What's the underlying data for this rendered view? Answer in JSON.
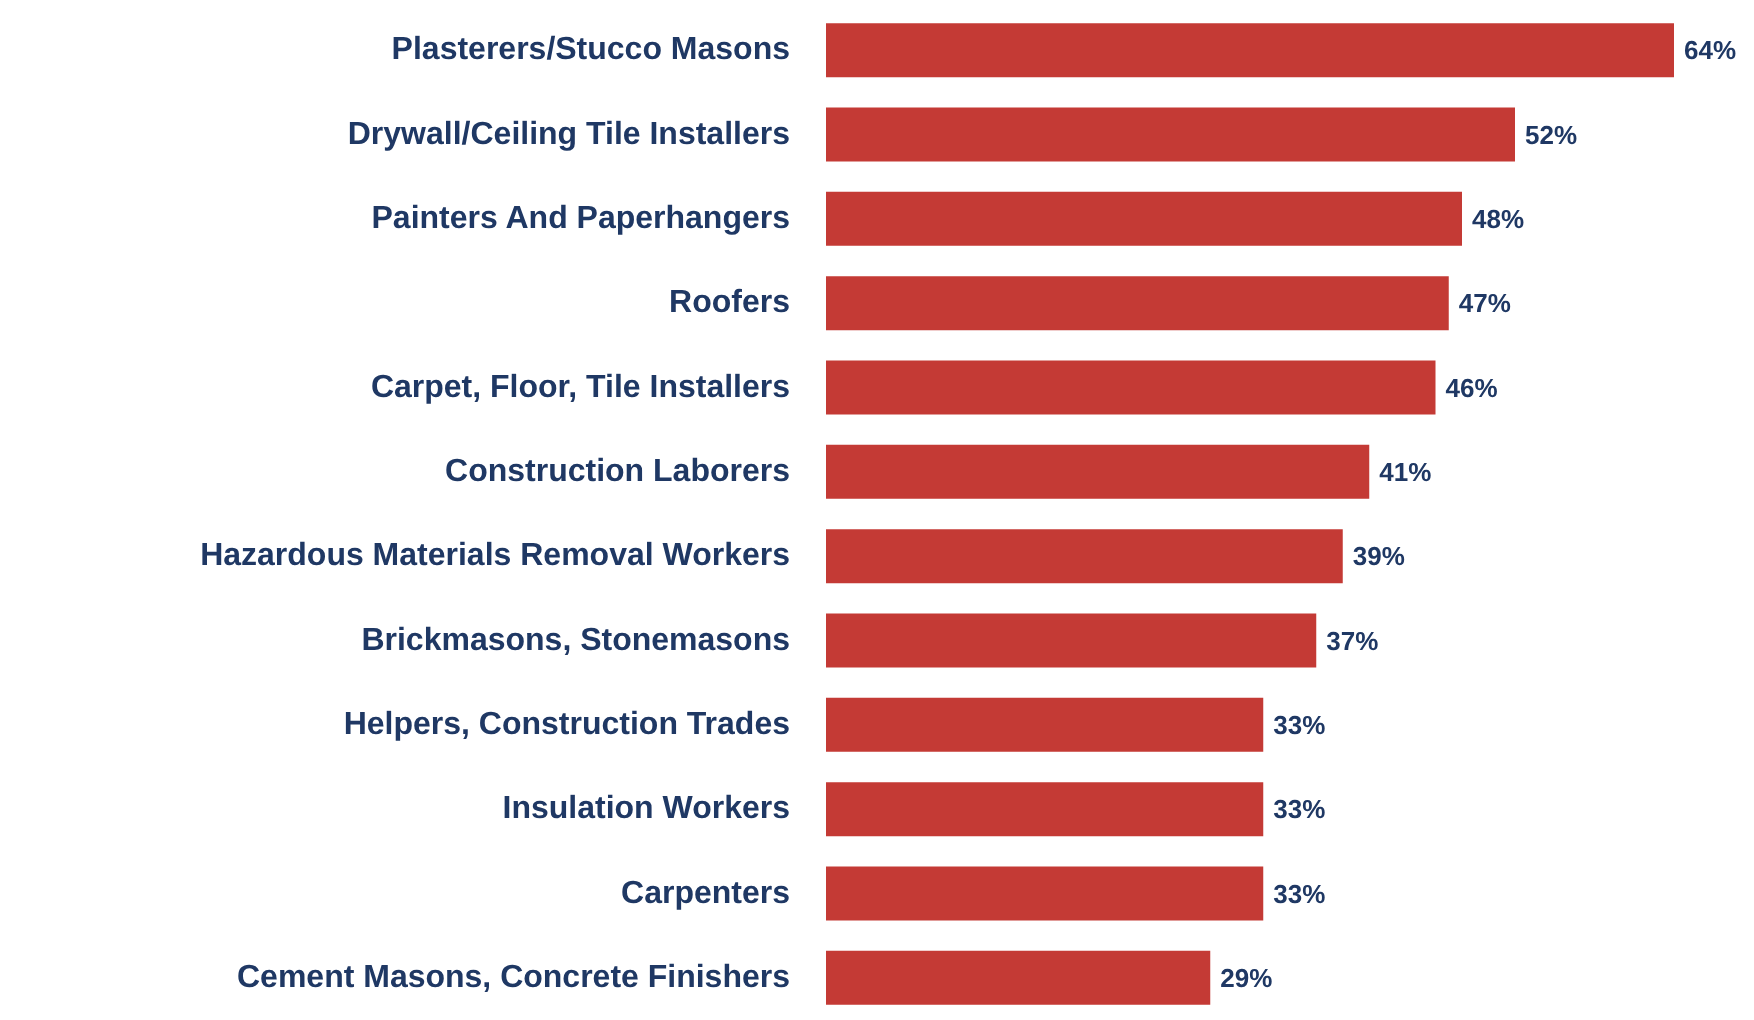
{
  "chart_data": {
    "type": "bar",
    "orientation": "horizontal",
    "tick_labels": "y",
    "grid": false,
    "categories": [
      "Plasterers/Stucco Masons",
      "Drywall/Ceiling Tile Installers",
      "Painters And Paperhangers",
      "Roofers",
      "Carpet, Floor, Tile Installers",
      "Construction Laborers",
      "Hazardous Materials Removal Workers",
      "Brickmasons, Stonemasons",
      "Helpers, Construction Trades",
      "Insulation Workers",
      "Carpenters",
      "Cement Masons, Concrete Finishers"
    ],
    "values": [
      64,
      52,
      48,
      47,
      46,
      41,
      39,
      37,
      33,
      33,
      33,
      29
    ],
    "value_labels": [
      "64%",
      "52%",
      "48%",
      "47%",
      "46%",
      "41%",
      "39%",
      "37%",
      "33%",
      "33%",
      "33%",
      "29%"
    ],
    "color": "#c43a35"
  }
}
